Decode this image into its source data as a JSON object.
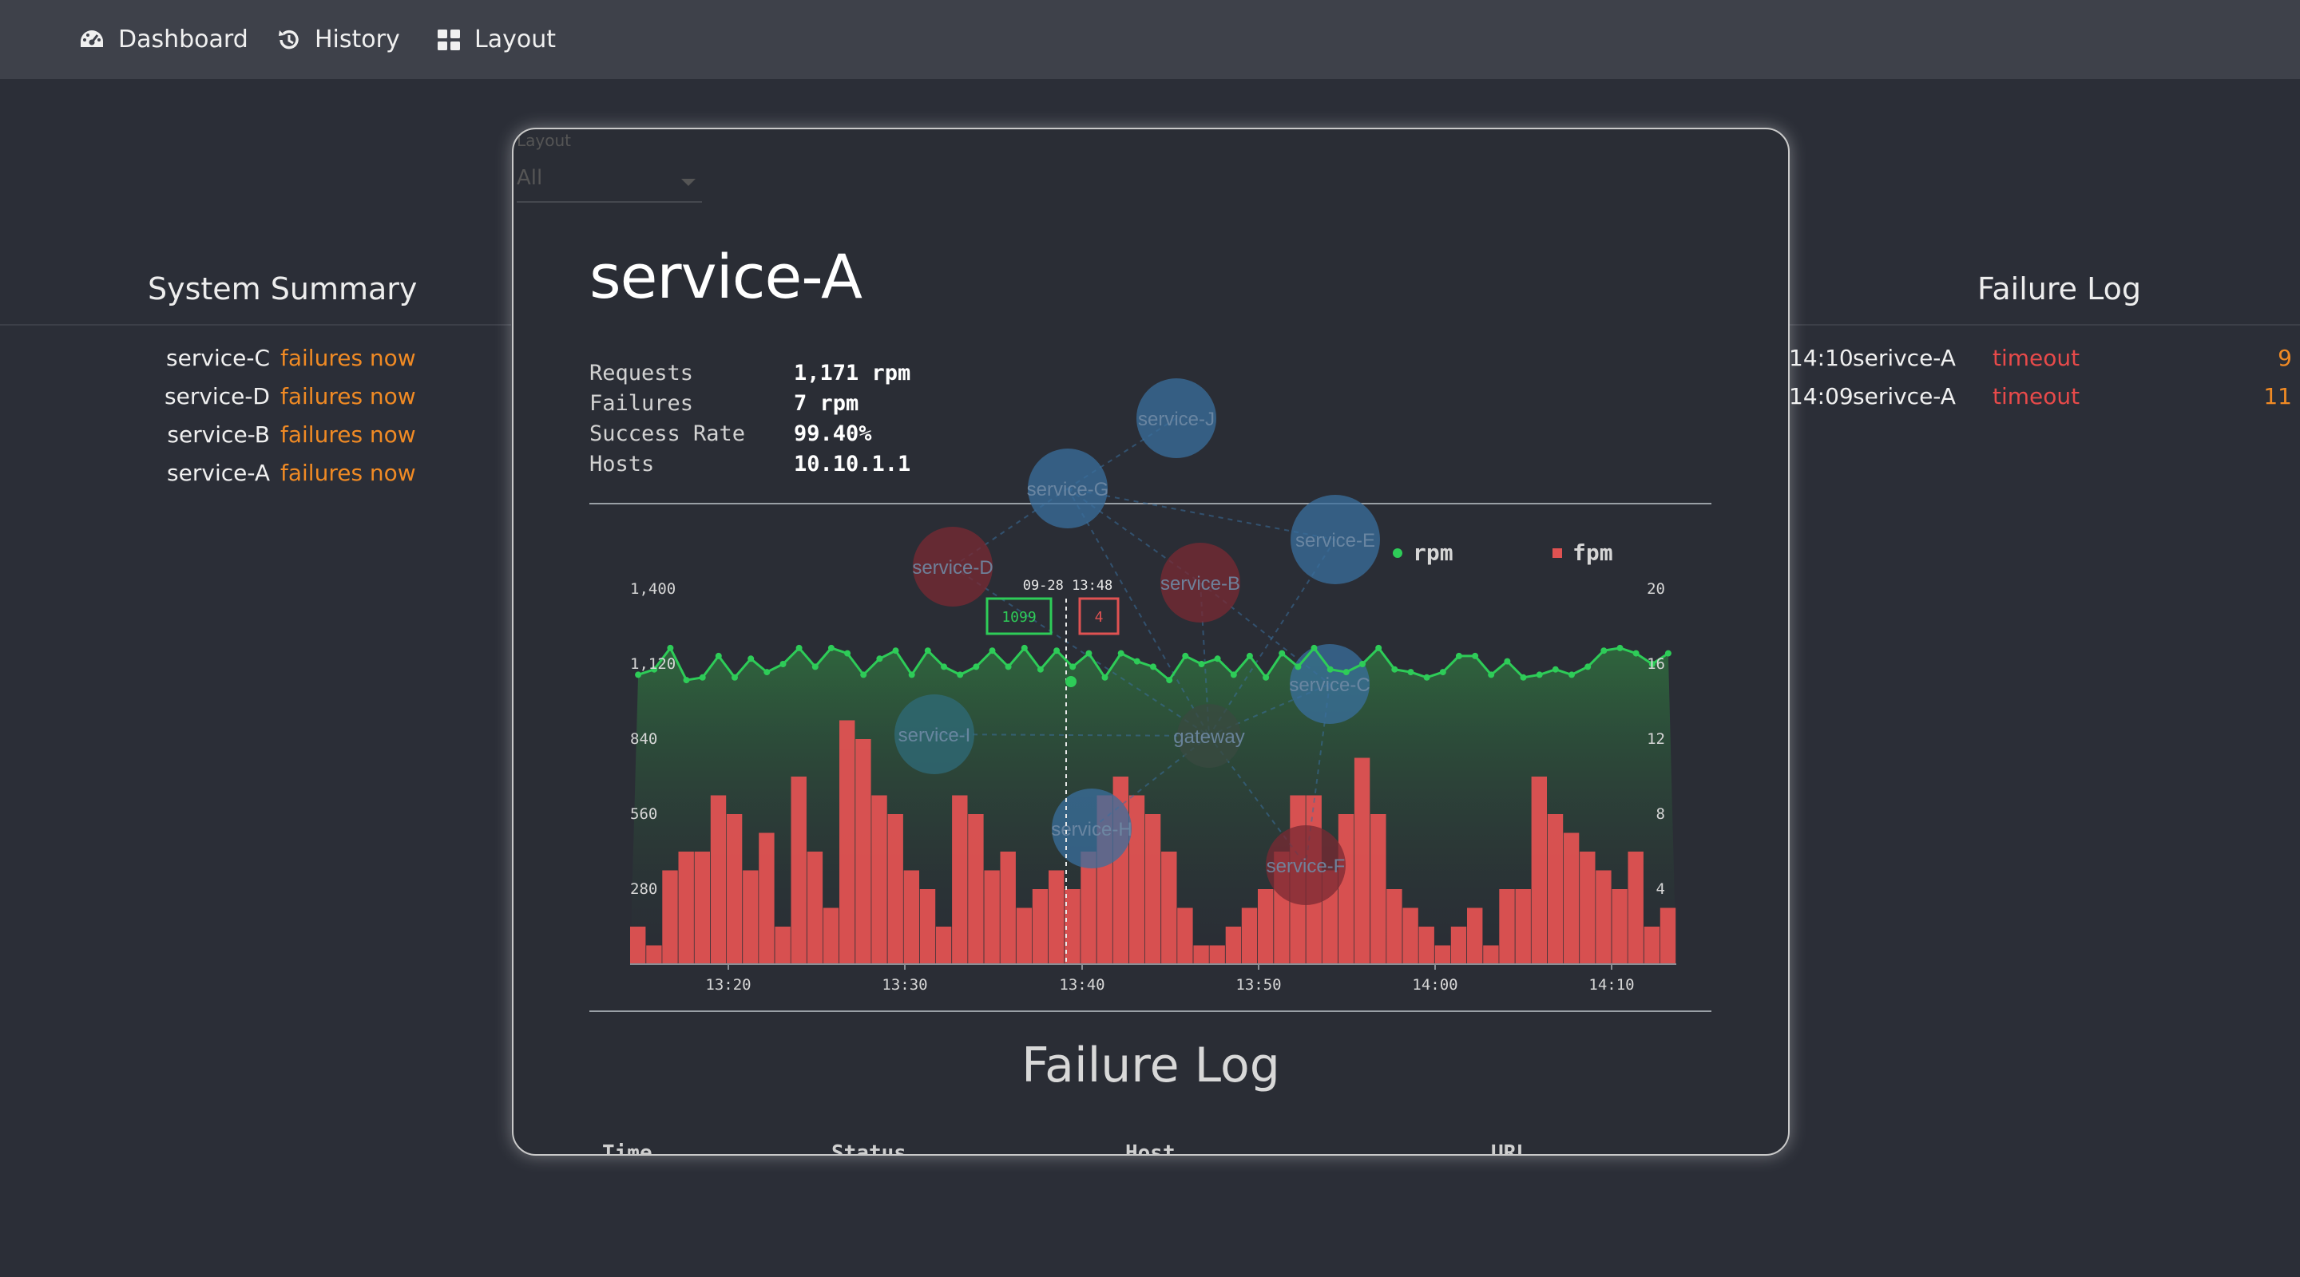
{
  "nav": {
    "items": [
      {
        "label": "Dashboard",
        "icon": "dashboard-gauge-icon"
      },
      {
        "label": "History",
        "icon": "history-icon"
      },
      {
        "label": "Layout",
        "icon": "grid-layout-icon"
      }
    ]
  },
  "system_summary": {
    "title": "System Summary",
    "rows": [
      {
        "service": "service-C",
        "status": "failures now"
      },
      {
        "service": "service-D",
        "status": "failures now"
      },
      {
        "service": "service-B",
        "status": "failures now"
      },
      {
        "service": "service-A",
        "status": "failures now"
      }
    ]
  },
  "failure_log_side": {
    "title": "Failure Log",
    "rows": [
      {
        "time": "14:10",
        "service": "serivce-A",
        "status": "timeout",
        "count": "9"
      },
      {
        "time": "14:09",
        "service": "serivce-A",
        "status": "timeout",
        "count": "11"
      }
    ]
  },
  "layout_select": {
    "label": "Layout",
    "value": "All"
  },
  "modal": {
    "title": "service-A",
    "stats": [
      {
        "key": "Requests",
        "value": "1,171 rpm"
      },
      {
        "key": "Failures",
        "value": "7 rpm"
      },
      {
        "key": "Success Rate",
        "value": "99.40%"
      },
      {
        "key": "Hosts",
        "value": "10.10.1.1"
      }
    ],
    "failure_log_title": "Failure Log",
    "failure_log_columns": [
      "Time",
      "Status",
      "Host",
      "URL"
    ]
  },
  "graph_nodes": [
    {
      "label": "service-J",
      "color": "#3a6f9e"
    },
    {
      "label": "service-G",
      "color": "#3a6f9e"
    },
    {
      "label": "service-E",
      "color": "#3a6f9e"
    },
    {
      "label": "service-D",
      "color": "#7a2a33"
    },
    {
      "label": "service-B",
      "color": "#7a2a33"
    },
    {
      "label": "service-I",
      "color": "#2f6b7a"
    },
    {
      "label": "gateway",
      "color": "#3a4a40"
    },
    {
      "label": "service-C",
      "color": "#3a6f9e"
    },
    {
      "label": "service-H",
      "color": "#3a6f9e"
    },
    {
      "label": "service-F",
      "color": "#7a2a33"
    }
  ],
  "chart_data": {
    "type": "bar",
    "title": "",
    "legend": [
      "rpm",
      "fpm"
    ],
    "legend_position": "top-right",
    "x_tick_labels": [
      "13:20",
      "13:30",
      "13:40",
      "13:50",
      "14:00",
      "14:10"
    ],
    "y_left": {
      "ticks": [
        "1,400",
        "1,120",
        "840",
        "560",
        "280"
      ],
      "range": [
        0,
        1400
      ]
    },
    "y_right": {
      "ticks": [
        "20",
        "16",
        "12",
        "8",
        "4"
      ],
      "range": [
        0,
        20
      ]
    },
    "tooltip": {
      "time": "09-28 13:48",
      "rpm": "1099",
      "fpm": "4"
    },
    "colors": {
      "rpm": "#2ecc58",
      "fpm": "#e05252"
    },
    "series": [
      {
        "name": "rpm",
        "type": "line",
        "values": [
          1080,
          1100,
          1180,
          1060,
          1070,
          1150,
          1070,
          1140,
          1090,
          1120,
          1180,
          1110,
          1180,
          1160,
          1080,
          1140,
          1170,
          1080,
          1170,
          1110,
          1080,
          1110,
          1170,
          1110,
          1180,
          1100,
          1170,
          1110,
          1160,
          1070,
          1160,
          1130,
          1110,
          1060,
          1150,
          1120,
          1140,
          1080,
          1150,
          1070,
          1160,
          1110,
          1180,
          1100,
          1090,
          1120,
          1180,
          1100,
          1090,
          1070,
          1090,
          1150,
          1150,
          1080,
          1130,
          1070,
          1080,
          1100,
          1080,
          1110,
          1170,
          1180,
          1160,
          1120,
          1160
        ]
      },
      {
        "name": "fpm",
        "type": "bar",
        "values": [
          2,
          1,
          5,
          6,
          6,
          9,
          8,
          5,
          7,
          2,
          10,
          6,
          3,
          13,
          12,
          9,
          8,
          5,
          4,
          2,
          9,
          8,
          5,
          6,
          3,
          4,
          5,
          4,
          6,
          9,
          10,
          9,
          8,
          6,
          3,
          1,
          1,
          2,
          3,
          4,
          6,
          9,
          9,
          5,
          8,
          11,
          8,
          4,
          3,
          2,
          1,
          2,
          3,
          1,
          4,
          4,
          10,
          8,
          7,
          6,
          5,
          4,
          6,
          2,
          3
        ]
      }
    ]
  }
}
